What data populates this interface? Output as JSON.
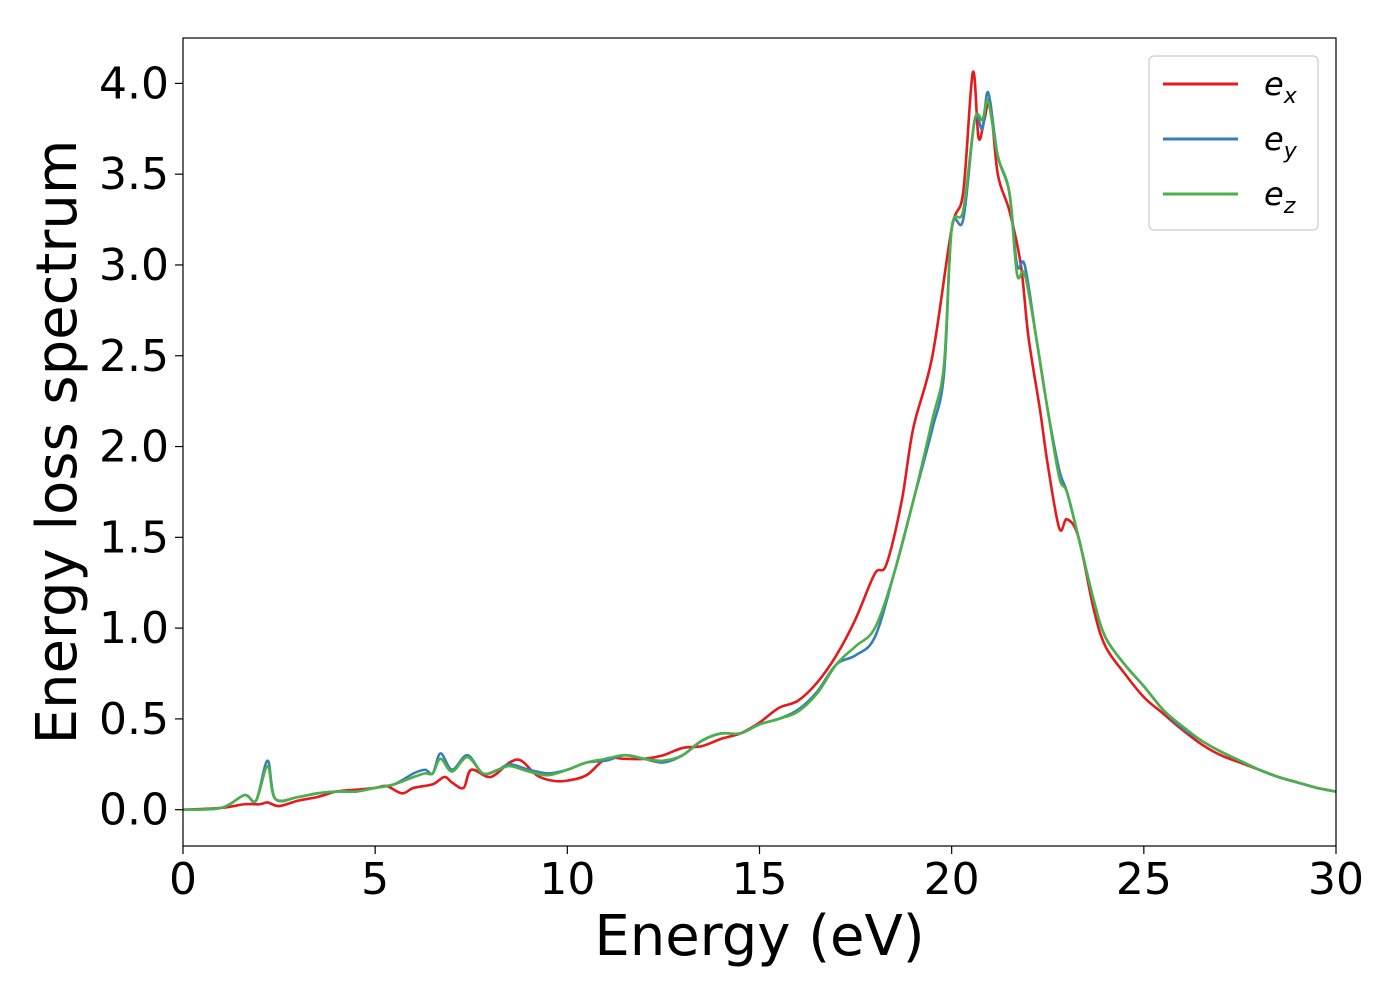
{
  "chart_data": {
    "type": "line",
    "xlabel": "Energy (eV)",
    "ylabel": "Energy loss spectrum",
    "xlim": [
      0,
      30
    ],
    "ylim": [
      -0.2,
      4.25
    ],
    "x_ticks": [
      0,
      5,
      10,
      15,
      20,
      25,
      30
    ],
    "x_tick_labels": [
      "0",
      "5",
      "10",
      "15",
      "20",
      "25",
      "30"
    ],
    "y_ticks": [
      0.0,
      0.5,
      1.0,
      1.5,
      2.0,
      2.5,
      3.0,
      3.5,
      4.0
    ],
    "y_tick_labels": [
      "0.0",
      "0.5",
      "1.0",
      "1.5",
      "2.0",
      "2.5",
      "3.0",
      "3.5",
      "4.0"
    ],
    "grid": false,
    "legend_position": "top-right",
    "series": [
      {
        "name": "e_x",
        "legend_base": "e",
        "legend_sub": "x",
        "color": "#e41a1c",
        "points": [
          [
            0,
            0
          ],
          [
            1,
            0.01
          ],
          [
            1.6,
            0.03
          ],
          [
            2.0,
            0.03
          ],
          [
            2.2,
            0.04
          ],
          [
            2.5,
            0.02
          ],
          [
            3.0,
            0.05
          ],
          [
            3.5,
            0.07
          ],
          [
            4.0,
            0.1
          ],
          [
            4.5,
            0.11
          ],
          [
            5.0,
            0.12
          ],
          [
            5.3,
            0.13
          ],
          [
            5.7,
            0.09
          ],
          [
            6.0,
            0.12
          ],
          [
            6.5,
            0.14
          ],
          [
            6.8,
            0.18
          ],
          [
            7.0,
            0.15
          ],
          [
            7.3,
            0.12
          ],
          [
            7.5,
            0.22
          ],
          [
            8.0,
            0.18
          ],
          [
            8.5,
            0.26
          ],
          [
            8.8,
            0.27
          ],
          [
            9.2,
            0.19
          ],
          [
            9.6,
            0.16
          ],
          [
            10.0,
            0.16
          ],
          [
            10.5,
            0.19
          ],
          [
            11.0,
            0.28
          ],
          [
            11.5,
            0.28
          ],
          [
            12.0,
            0.28
          ],
          [
            12.5,
            0.3
          ],
          [
            13.0,
            0.34
          ],
          [
            13.5,
            0.35
          ],
          [
            14.0,
            0.39
          ],
          [
            14.5,
            0.42
          ],
          [
            15.0,
            0.48
          ],
          [
            15.5,
            0.56
          ],
          [
            16.0,
            0.6
          ],
          [
            16.5,
            0.7
          ],
          [
            17.0,
            0.85
          ],
          [
            17.5,
            1.05
          ],
          [
            18.0,
            1.3
          ],
          [
            18.3,
            1.35
          ],
          [
            18.7,
            1.7
          ],
          [
            19.0,
            2.1
          ],
          [
            19.5,
            2.5
          ],
          [
            20.0,
            3.2
          ],
          [
            20.3,
            3.4
          ],
          [
            20.55,
            4.06
          ],
          [
            20.7,
            3.7
          ],
          [
            20.85,
            3.8
          ],
          [
            21.0,
            3.9
          ],
          [
            21.2,
            3.5
          ],
          [
            21.5,
            3.3
          ],
          [
            21.8,
            3.0
          ],
          [
            22.0,
            2.6
          ],
          [
            22.3,
            2.2
          ],
          [
            22.5,
            1.9
          ],
          [
            22.8,
            1.55
          ],
          [
            23.0,
            1.6
          ],
          [
            23.3,
            1.5
          ],
          [
            23.7,
            1.1
          ],
          [
            24.0,
            0.9
          ],
          [
            24.5,
            0.75
          ],
          [
            25.0,
            0.62
          ],
          [
            25.5,
            0.53
          ],
          [
            26.0,
            0.44
          ],
          [
            26.5,
            0.36
          ],
          [
            27.0,
            0.3
          ],
          [
            27.5,
            0.26
          ],
          [
            28.0,
            0.22
          ],
          [
            28.5,
            0.18
          ],
          [
            29.0,
            0.15
          ],
          [
            29.5,
            0.12
          ],
          [
            30.0,
            0.1
          ]
        ]
      },
      {
        "name": "e_y",
        "legend_base": "e",
        "legend_sub": "y",
        "color": "#377eb8",
        "points": [
          [
            0,
            0
          ],
          [
            1,
            0.01
          ],
          [
            1.6,
            0.08
          ],
          [
            1.9,
            0.05
          ],
          [
            2.2,
            0.27
          ],
          [
            2.4,
            0.06
          ],
          [
            3.0,
            0.07
          ],
          [
            3.5,
            0.09
          ],
          [
            4.0,
            0.1
          ],
          [
            4.5,
            0.1
          ],
          [
            5.0,
            0.12
          ],
          [
            5.5,
            0.14
          ],
          [
            6.0,
            0.2
          ],
          [
            6.3,
            0.22
          ],
          [
            6.5,
            0.2
          ],
          [
            6.7,
            0.31
          ],
          [
            7.0,
            0.22
          ],
          [
            7.4,
            0.3
          ],
          [
            7.8,
            0.2
          ],
          [
            8.2,
            0.22
          ],
          [
            8.5,
            0.25
          ],
          [
            9.0,
            0.22
          ],
          [
            9.5,
            0.2
          ],
          [
            10.0,
            0.22
          ],
          [
            10.5,
            0.26
          ],
          [
            11.0,
            0.27
          ],
          [
            11.5,
            0.3
          ],
          [
            12.0,
            0.28
          ],
          [
            12.5,
            0.26
          ],
          [
            13.0,
            0.3
          ],
          [
            13.5,
            0.38
          ],
          [
            14.0,
            0.42
          ],
          [
            14.5,
            0.42
          ],
          [
            15.0,
            0.47
          ],
          [
            15.5,
            0.5
          ],
          [
            16.0,
            0.55
          ],
          [
            16.5,
            0.65
          ],
          [
            17.0,
            0.8
          ],
          [
            17.5,
            0.85
          ],
          [
            18.0,
            0.95
          ],
          [
            18.5,
            1.3
          ],
          [
            19.0,
            1.7
          ],
          [
            19.5,
            2.1
          ],
          [
            19.8,
            2.4
          ],
          [
            20.0,
            3.2
          ],
          [
            20.3,
            3.25
          ],
          [
            20.6,
            3.8
          ],
          [
            20.8,
            3.75
          ],
          [
            20.95,
            3.95
          ],
          [
            21.2,
            3.6
          ],
          [
            21.5,
            3.4
          ],
          [
            21.7,
            3.0
          ],
          [
            21.9,
            3.0
          ],
          [
            22.2,
            2.6
          ],
          [
            22.5,
            2.2
          ],
          [
            22.8,
            1.87
          ],
          [
            23.0,
            1.75
          ],
          [
            23.3,
            1.5
          ],
          [
            23.7,
            1.15
          ],
          [
            24.0,
            0.95
          ],
          [
            24.5,
            0.8
          ],
          [
            25.0,
            0.68
          ],
          [
            25.5,
            0.55
          ],
          [
            26.0,
            0.45
          ],
          [
            26.5,
            0.38
          ],
          [
            27.0,
            0.32
          ],
          [
            27.5,
            0.27
          ],
          [
            28.0,
            0.22
          ],
          [
            28.5,
            0.18
          ],
          [
            29.0,
            0.15
          ],
          [
            29.5,
            0.12
          ],
          [
            30.0,
            0.1
          ]
        ]
      },
      {
        "name": "e_z",
        "legend_base": "e",
        "legend_sub": "z",
        "color": "#4daf4a",
        "points": [
          [
            0,
            0
          ],
          [
            1,
            0.01
          ],
          [
            1.6,
            0.08
          ],
          [
            1.9,
            0.05
          ],
          [
            2.2,
            0.24
          ],
          [
            2.4,
            0.06
          ],
          [
            3.0,
            0.07
          ],
          [
            3.5,
            0.09
          ],
          [
            4.0,
            0.1
          ],
          [
            4.5,
            0.1
          ],
          [
            5.0,
            0.12
          ],
          [
            5.5,
            0.14
          ],
          [
            6.0,
            0.18
          ],
          [
            6.3,
            0.2
          ],
          [
            6.5,
            0.2
          ],
          [
            6.7,
            0.28
          ],
          [
            7.0,
            0.21
          ],
          [
            7.4,
            0.29
          ],
          [
            7.8,
            0.2
          ],
          [
            8.2,
            0.22
          ],
          [
            8.5,
            0.24
          ],
          [
            9.0,
            0.21
          ],
          [
            9.5,
            0.19
          ],
          [
            10.0,
            0.22
          ],
          [
            10.5,
            0.26
          ],
          [
            11.0,
            0.28
          ],
          [
            11.5,
            0.3
          ],
          [
            12.0,
            0.28
          ],
          [
            12.5,
            0.27
          ],
          [
            13.0,
            0.3
          ],
          [
            13.5,
            0.38
          ],
          [
            14.0,
            0.42
          ],
          [
            14.5,
            0.42
          ],
          [
            15.0,
            0.47
          ],
          [
            15.5,
            0.5
          ],
          [
            16.0,
            0.54
          ],
          [
            16.5,
            0.64
          ],
          [
            17.0,
            0.8
          ],
          [
            17.5,
            0.9
          ],
          [
            18.0,
            1.0
          ],
          [
            18.5,
            1.3
          ],
          [
            19.0,
            1.7
          ],
          [
            19.5,
            2.15
          ],
          [
            19.8,
            2.45
          ],
          [
            20.0,
            3.2
          ],
          [
            20.3,
            3.3
          ],
          [
            20.6,
            3.8
          ],
          [
            20.8,
            3.8
          ],
          [
            20.95,
            3.9
          ],
          [
            21.2,
            3.6
          ],
          [
            21.5,
            3.4
          ],
          [
            21.7,
            2.95
          ],
          [
            21.9,
            2.95
          ],
          [
            22.2,
            2.6
          ],
          [
            22.5,
            2.2
          ],
          [
            22.8,
            1.83
          ],
          [
            23.0,
            1.75
          ],
          [
            23.3,
            1.5
          ],
          [
            23.7,
            1.15
          ],
          [
            24.0,
            0.95
          ],
          [
            24.5,
            0.8
          ],
          [
            25.0,
            0.68
          ],
          [
            25.5,
            0.55
          ],
          [
            26.0,
            0.46
          ],
          [
            26.5,
            0.38
          ],
          [
            27.0,
            0.32
          ],
          [
            27.5,
            0.27
          ],
          [
            28.0,
            0.22
          ],
          [
            28.5,
            0.18
          ],
          [
            29.0,
            0.15
          ],
          [
            29.5,
            0.12
          ],
          [
            30.0,
            0.1
          ]
        ]
      }
    ]
  }
}
